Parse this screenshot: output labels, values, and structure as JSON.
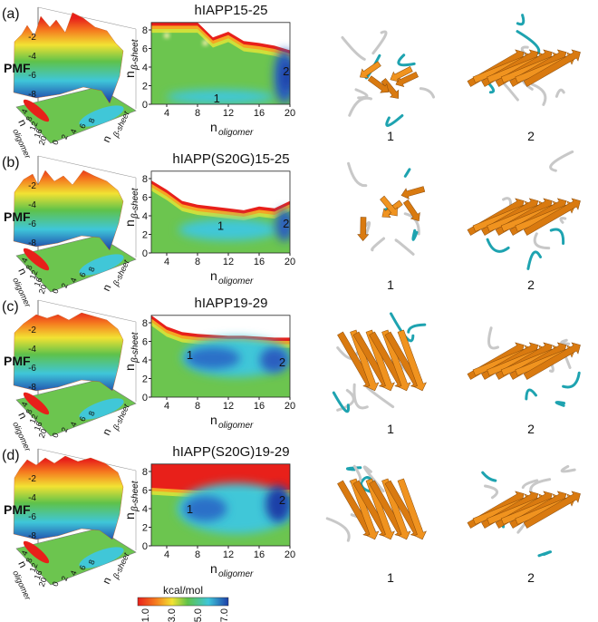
{
  "panels": [
    {
      "label": "(a)",
      "title": "hIAPP15-25",
      "surface": {
        "z_label": "PMF",
        "z_ticks": [
          "-2",
          "-4",
          "-6",
          "-8"
        ],
        "x_label": "n",
        "x_sub": "oligomer",
        "x_ticks": [
          "4",
          "8",
          "12",
          "16",
          "20"
        ],
        "y_label": "n",
        "y_sub": "β-sheet",
        "y_ticks": [
          "0",
          "2",
          "4",
          "6",
          "8"
        ]
      },
      "heatmap": {
        "x_label": "n",
        "x_sub": "oligomer",
        "y_label": "n",
        "y_sub": "β-sheet",
        "x_ticks": [
          "4",
          "8",
          "12",
          "16",
          "20"
        ],
        "y_ticks": [
          "0",
          "2",
          "4",
          "6",
          "8"
        ],
        "markers": [
          "1",
          "2"
        ]
      },
      "structures": [
        "1",
        "2"
      ]
    },
    {
      "label": "(b)",
      "title": "hIAPP(S20G)15-25",
      "surface": {
        "z_label": "PMF",
        "z_ticks": [
          "-2",
          "-4",
          "-6",
          "-8"
        ],
        "x_label": "n",
        "x_sub": "oligomer",
        "x_ticks": [
          "4",
          "8",
          "12",
          "16",
          "20"
        ],
        "y_label": "n",
        "y_sub": "β-sheet",
        "y_ticks": [
          "0",
          "2",
          "4",
          "6",
          "8"
        ]
      },
      "heatmap": {
        "x_label": "n",
        "x_sub": "oligomer",
        "y_label": "n",
        "y_sub": "β-sheet",
        "x_ticks": [
          "4",
          "8",
          "12",
          "16",
          "20"
        ],
        "y_ticks": [
          "0",
          "2",
          "4",
          "6",
          "8"
        ],
        "markers": [
          "1",
          "2"
        ]
      },
      "structures": [
        "1",
        "2"
      ]
    },
    {
      "label": "(c)",
      "title": "hIAPP19-29",
      "surface": {
        "z_label": "PMF",
        "z_ticks": [
          "-2",
          "-4",
          "-6",
          "-8"
        ],
        "x_label": "n",
        "x_sub": "oligomer",
        "x_ticks": [
          "4",
          "8",
          "12",
          "16",
          "20"
        ],
        "y_label": "n",
        "y_sub": "β-sheet",
        "y_ticks": [
          "0",
          "2",
          "4",
          "6",
          "8"
        ]
      },
      "heatmap": {
        "x_label": "n",
        "x_sub": "oligomer",
        "y_label": "n",
        "y_sub": "β-sheet",
        "x_ticks": [
          "4",
          "8",
          "12",
          "16",
          "20"
        ],
        "y_ticks": [
          "0",
          "2",
          "4",
          "6",
          "8"
        ],
        "markers": [
          "1",
          "2"
        ]
      },
      "structures": [
        "1",
        "2"
      ]
    },
    {
      "label": "(d)",
      "title": "hIAPP(S20G)19-29",
      "surface": {
        "z_label": "PMF",
        "z_ticks": [
          "-2",
          "-4",
          "-6",
          "-8"
        ],
        "x_label": "n",
        "x_sub": "oligomer",
        "x_ticks": [
          "4",
          "8",
          "12",
          "16",
          "20"
        ],
        "y_label": "n",
        "y_sub": "β-sheet",
        "y_ticks": [
          "0",
          "2",
          "4",
          "6",
          "8"
        ]
      },
      "heatmap": {
        "x_label": "n",
        "x_sub": "oligomer",
        "y_label": "n",
        "y_sub": "β-sheet",
        "x_ticks": [
          "4",
          "8",
          "12",
          "16",
          "20"
        ],
        "y_ticks": [
          "0",
          "2",
          "4",
          "6",
          "8"
        ],
        "markers": [
          "1",
          "2"
        ]
      },
      "structures": [
        "1",
        "2"
      ]
    }
  ],
  "colorbar": {
    "title": "kcal/mol",
    "ticks": [
      "-1.0",
      "-3.0",
      "-5.0",
      "-7.0"
    ]
  }
}
